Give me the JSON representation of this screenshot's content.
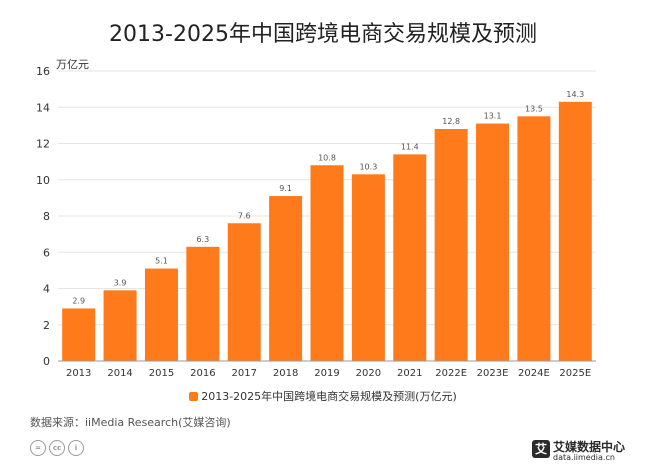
{
  "title": "2013-2025年中国跨境电商交易规模及预测",
  "unit_label": "万亿元",
  "legend_label": "2013-2025年中国跨境电商交易规模及预测(万亿元)",
  "source": "数据来源：iiMedia Research(艾媒咨询)",
  "brand": {
    "mark": "艾",
    "name_cn": "艾媒数据中心",
    "name_en": "data.iimedia.cn"
  },
  "cc_icons": [
    "=",
    "cc",
    "i"
  ],
  "colors": {
    "bar": "#ff7a1a",
    "grid": "#e6e6e6",
    "axis": "#999999"
  },
  "chart_data": {
    "type": "bar",
    "title": "2013-2025年中国跨境电商交易规模及预测",
    "ylabel": "万亿元",
    "ylim": [
      0,
      16
    ],
    "yticks": [
      0,
      2,
      4,
      6,
      8,
      10,
      12,
      14,
      16
    ],
    "grid": true,
    "legend_placement": "bottom",
    "categories": [
      "2013",
      "2014",
      "2015",
      "2016",
      "2017",
      "2018",
      "2019",
      "2020",
      "2021",
      "2022E",
      "2023E",
      "2024E",
      "2025E"
    ],
    "series": [
      {
        "name": "2013-2025年中国跨境电商交易规模及预测(万亿元)",
        "values": [
          2.9,
          3.9,
          5.1,
          6.3,
          7.6,
          9.1,
          10.8,
          10.3,
          11.4,
          12.8,
          13.1,
          13.5,
          14.3
        ],
        "labels": [
          "2.9",
          "3.9",
          "5.1",
          "6.3",
          "7.6",
          "9.1",
          "10.8",
          "10.3",
          "11.4",
          "12.8",
          "13.1",
          "13.5",
          "14.3"
        ]
      }
    ]
  }
}
